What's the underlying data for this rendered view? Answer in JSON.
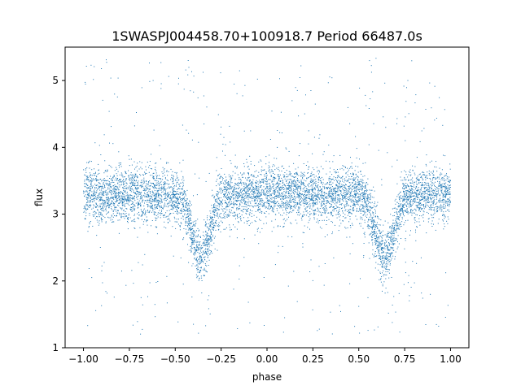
{
  "chart_data": {
    "type": "scatter",
    "title": "1SWASPJ004458.70+100918.7 Period 66487.0s",
    "xlabel": "phase",
    "ylabel": "flux",
    "xlim": [
      -1.1,
      1.1
    ],
    "ylim": [
      1.0,
      5.5
    ],
    "grid": false,
    "x_ticks": [
      -1.0,
      -0.75,
      -0.5,
      -0.25,
      0.0,
      0.25,
      0.5,
      0.75,
      1.0
    ],
    "x_tick_labels": [
      "−1.00",
      "−0.75",
      "−0.50",
      "−0.25",
      "0.00",
      "0.25",
      "0.50",
      "0.75",
      "1.00"
    ],
    "y_ticks": [
      1,
      2,
      3,
      4,
      5
    ],
    "y_tick_labels": [
      "1",
      "2",
      "3",
      "4",
      "5"
    ],
    "series": [
      {
        "color": "#1f77b4",
        "marker": "point",
        "model": {
          "phase_range": [
            -1.0,
            1.0
          ],
          "baseline_flux": 3.3,
          "scatter_sigma": 0.2,
          "eclipses": [
            {
              "phase": -0.36,
              "min_flux": 2.35,
              "width": 0.05
            },
            {
              "phase": 0.64,
              "min_flux": 2.35,
              "width": 0.05
            }
          ],
          "outlier_range": [
            1.2,
            5.35
          ]
        },
        "points": [
          {
            "x": -0.36,
            "y": 2.3
          },
          {
            "x": -0.35,
            "y": 2.4
          },
          {
            "x": -0.37,
            "y": 2.5
          },
          {
            "x": 0.64,
            "y": 2.3
          },
          {
            "x": 0.65,
            "y": 2.4
          },
          {
            "x": 0.63,
            "y": 2.5
          },
          {
            "x": -0.6,
            "y": 3.3
          },
          {
            "x": 0.0,
            "y": 3.35
          },
          {
            "x": 0.3,
            "y": 3.3
          },
          {
            "x": 0.9,
            "y": 3.35
          },
          {
            "x": -0.9,
            "y": 3.3
          }
        ]
      }
    ]
  }
}
